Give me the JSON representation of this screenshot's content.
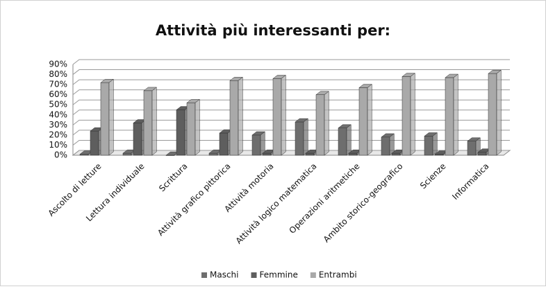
{
  "chart_data": {
    "type": "bar3d",
    "title": "Attività più interessanti per:",
    "categories": [
      "Ascolto di letture",
      "Lettura individuale",
      "Scrittura",
      "Attività grafico pittorica",
      "Attività motoria",
      "Attività logico matematica",
      "Operazioni aritmetiche",
      "Ambito storico-geografico",
      "Scienze",
      "Informatica"
    ],
    "series": [
      {
        "name": "Maschi",
        "color": "#6e6e6e",
        "values": [
          1,
          2,
          0,
          2,
          20,
          33,
          27,
          18,
          19,
          14
        ]
      },
      {
        "name": "Femmine",
        "color": "#5e5e5e",
        "values": [
          24,
          32,
          45,
          22,
          2,
          2,
          2,
          2,
          1,
          3
        ]
      },
      {
        "name": "Entrambi",
        "color": "#a9a9a9",
        "values": [
          72,
          64,
          52,
          74,
          76,
          60,
          67,
          78,
          77,
          81
        ]
      }
    ],
    "ylim": [
      0,
      90
    ],
    "yticks": [
      {
        "value": 0,
        "label": "0%"
      },
      {
        "value": 10,
        "label": "10%"
      },
      {
        "value": 20,
        "label": "20%"
      },
      {
        "value": 30,
        "label": "30%"
      },
      {
        "value": 40,
        "label": "40%"
      },
      {
        "value": 50,
        "label": "50%"
      },
      {
        "value": 60,
        "label": "60%"
      },
      {
        "value": 70,
        "label": "70%"
      },
      {
        "value": 80,
        "label": "80%"
      },
      {
        "value": 90,
        "label": "90%"
      }
    ],
    "grid": true,
    "legend": "bottom"
  }
}
